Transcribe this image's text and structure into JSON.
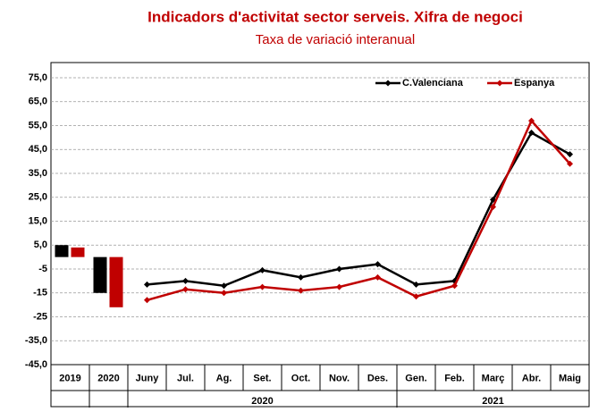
{
  "chart_data": {
    "type": "line",
    "title": "Indicadors d'activitat sector serveis. Xifra de negoci",
    "subtitle": "Taxa de variació interanual",
    "ylim": [
      -45,
      75
    ],
    "yticks": [
      {
        "value": -45,
        "label": "-45,0"
      },
      {
        "value": -35,
        "label": "-35,0"
      },
      -25,
      -15,
      -5,
      {
        "value": 5,
        "label": "5,0"
      },
      {
        "value": 15,
        "label": "15,0"
      },
      {
        "value": 25,
        "label": "25,0"
      },
      {
        "value": 35,
        "label": "35,0"
      },
      {
        "value": 45,
        "label": "45,0"
      },
      {
        "value": 55,
        "label": "55,0"
      },
      {
        "value": 65,
        "label": "65,0"
      },
      {
        "value": 75,
        "label": "75,0"
      }
    ],
    "grid": true,
    "legend": "top-right",
    "bars": {
      "type": "bar",
      "categories": [
        "2019",
        "2020"
      ],
      "series": [
        {
          "values": [
            5,
            -15
          ]
        },
        {
          "values": [
            4,
            -21
          ]
        }
      ]
    },
    "categories": [
      "Juny",
      "Jul.",
      "Ag.",
      "Set.",
      "Oct.",
      "Nov.",
      "Des.",
      "Gen.",
      "Feb.",
      "Març",
      "Abr.",
      "Maig"
    ],
    "groups": [
      {
        "label": "2020",
        "span": 7
      },
      {
        "label": "2021",
        "span": 5
      }
    ],
    "series": [
      {
        "name": "C.Valenciana",
        "color": "#000000",
        "values": [
          -11.5,
          -10,
          -12,
          -5.5,
          -8.5,
          -5,
          -3,
          -11.5,
          -10,
          24,
          52,
          43
        ]
      },
      {
        "name": "Espanya",
        "color": "#c00000",
        "values": [
          -18,
          -13.5,
          -15,
          -12.5,
          -14,
          -12.5,
          -8.5,
          -16.5,
          -12,
          21,
          57,
          39
        ]
      }
    ]
  }
}
